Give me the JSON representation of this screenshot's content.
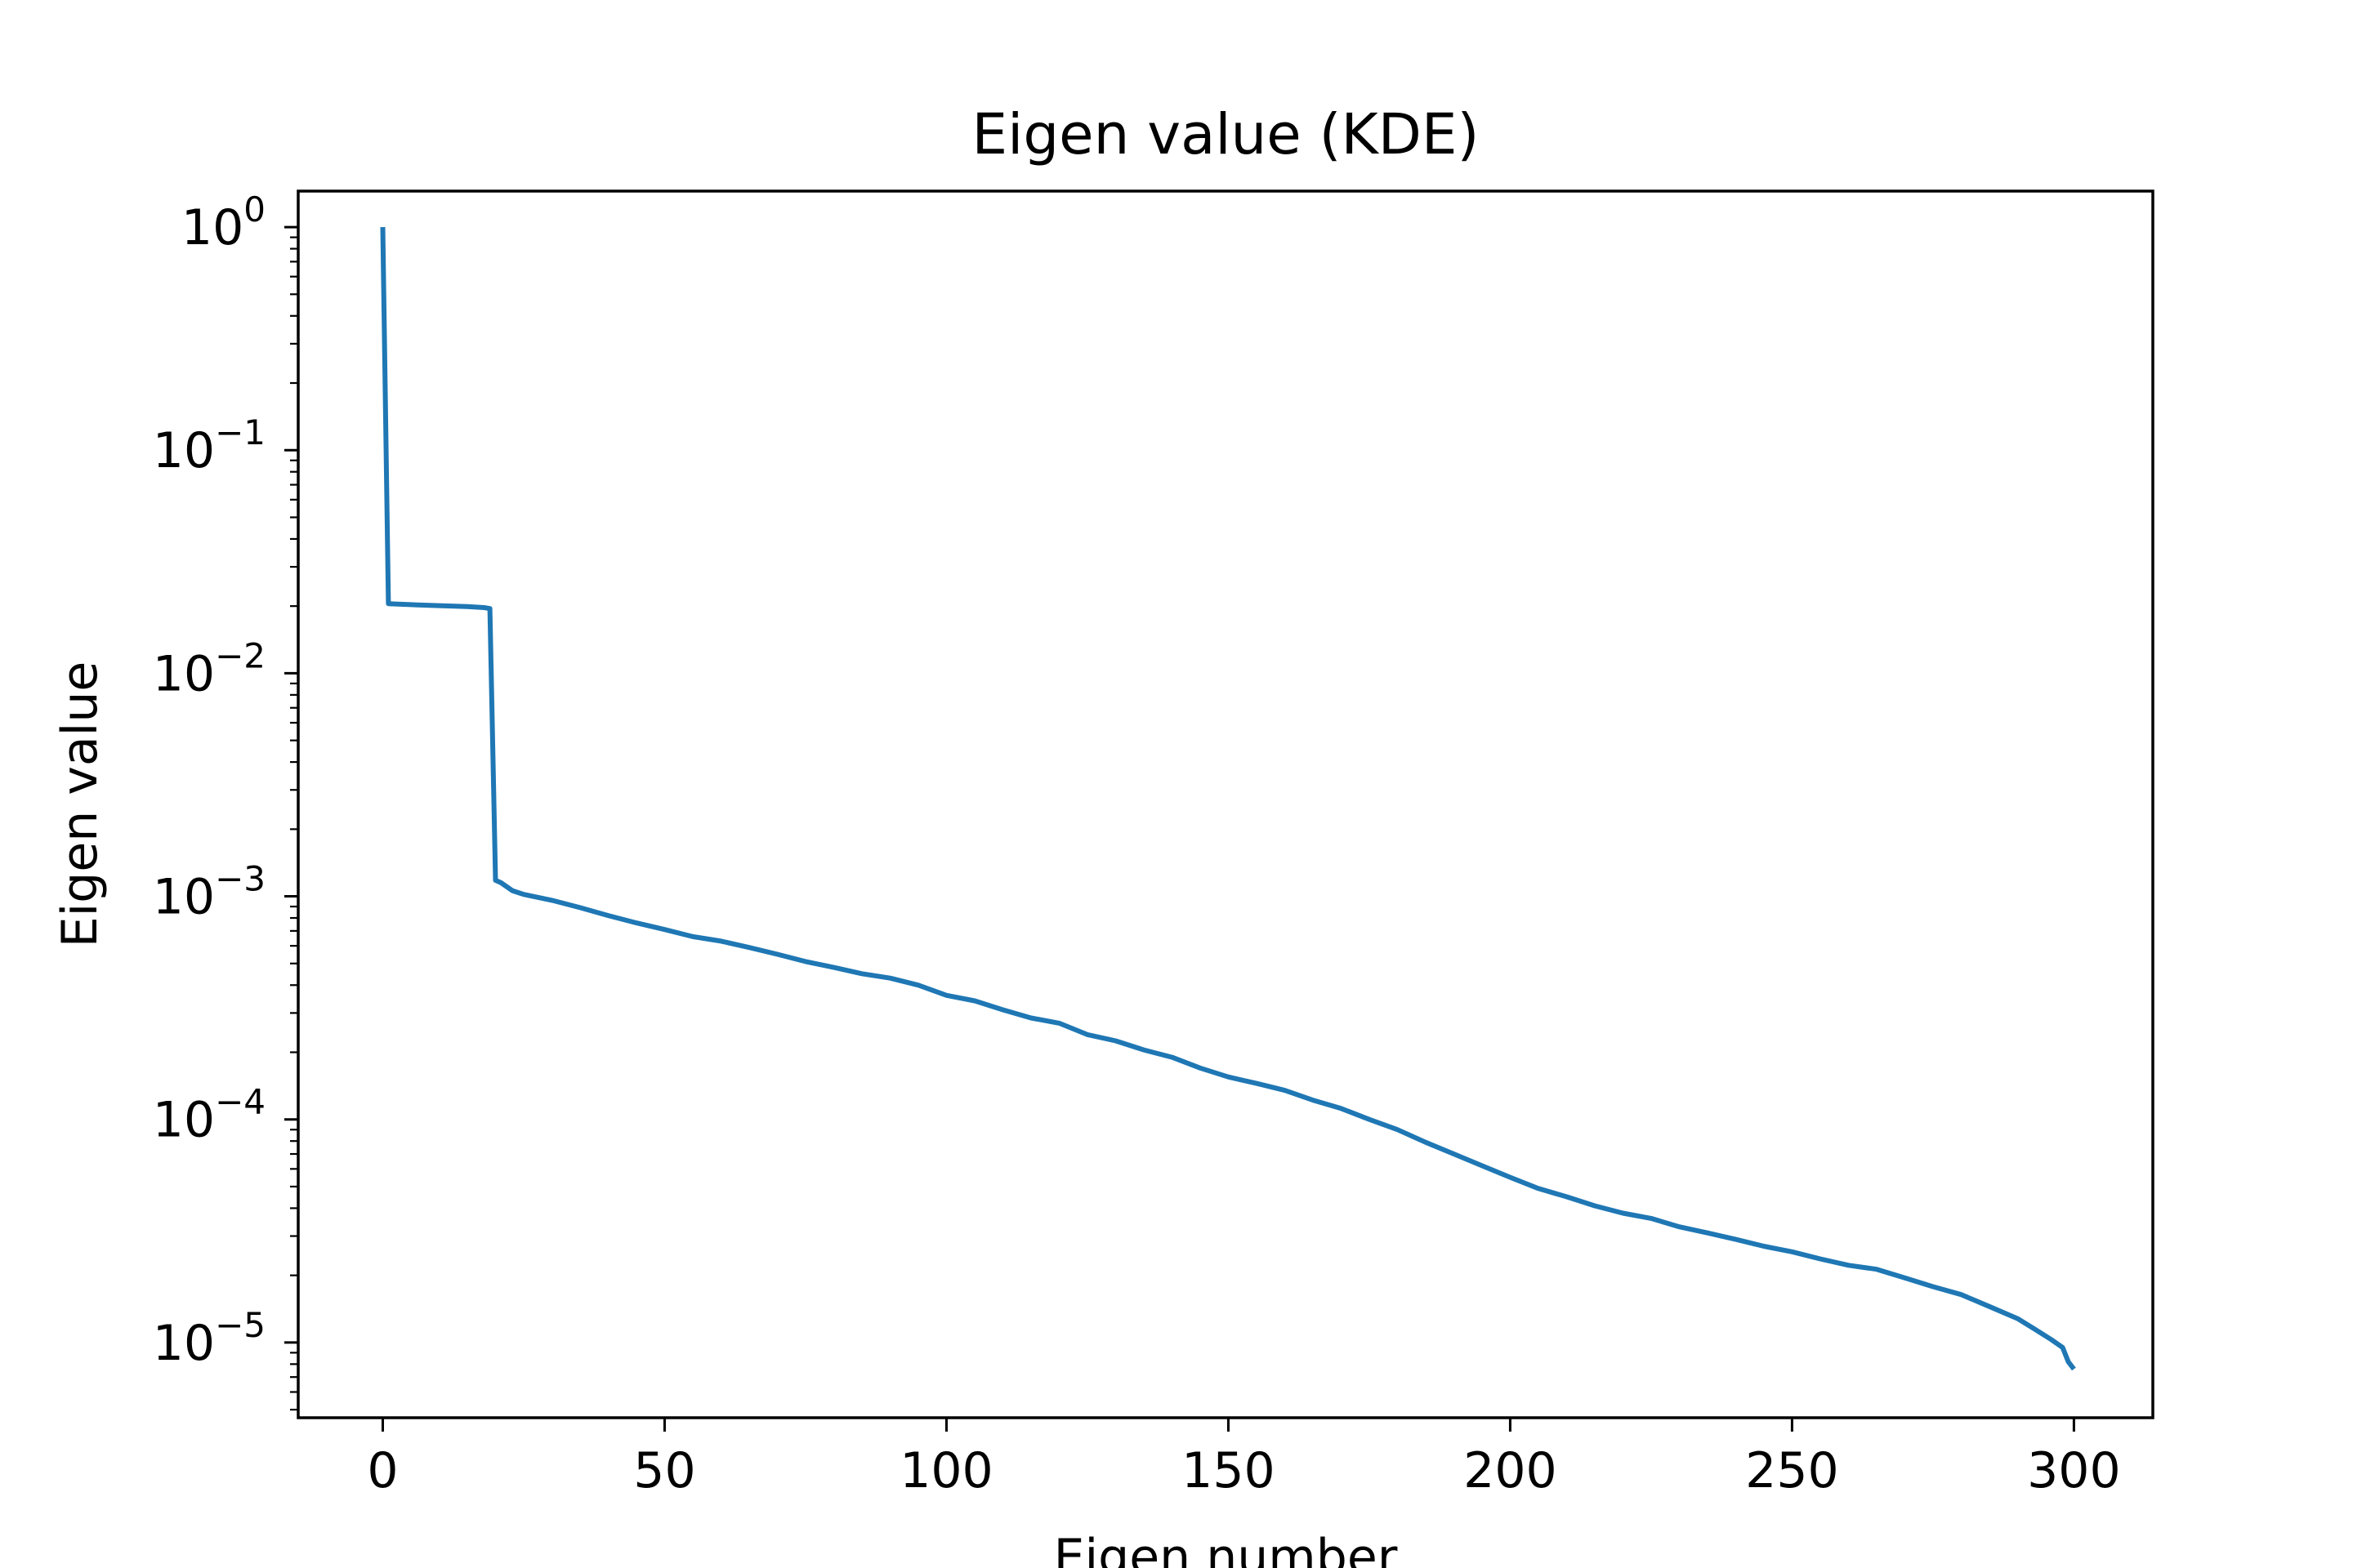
{
  "chart_data": {
    "type": "line",
    "title": "Eigen value (KDE)",
    "xlabel": "Eigen number",
    "ylabel": "Eigen value",
    "xlim": [
      -15,
      314
    ],
    "ylim": [
      4.6e-06,
      1.45
    ],
    "yscale": "log",
    "grid": false,
    "line_color": "#1f77b4",
    "x_ticks": [
      0,
      50,
      100,
      150,
      200,
      250,
      300
    ],
    "x_tick_labels": [
      "0",
      "50",
      "100",
      "150",
      "200",
      "250",
      "300"
    ],
    "y_ticks": [
      1,
      0.1,
      0.01,
      0.001,
      0.0001,
      1e-05
    ],
    "y_tick_labels": [
      {
        "base": "10",
        "exp": "0"
      },
      {
        "base": "10",
        "exp": "−1"
      },
      {
        "base": "10",
        "exp": "−2"
      },
      {
        "base": "10",
        "exp": "−3"
      },
      {
        "base": "10",
        "exp": "−4"
      },
      {
        "base": "10",
        "exp": "−5"
      }
    ],
    "series": [
      {
        "points": [
          [
            0,
            1.0
          ],
          [
            1,
            0.0205
          ],
          [
            5,
            0.0203
          ],
          [
            10,
            0.0201
          ],
          [
            15,
            0.0199
          ],
          [
            18,
            0.0197
          ],
          [
            19,
            0.0195
          ],
          [
            20,
            0.00118
          ],
          [
            21,
            0.00115
          ],
          [
            23,
            0.00106
          ],
          [
            25,
            0.00102
          ],
          [
            30,
            0.00096
          ],
          [
            35,
            0.00089
          ],
          [
            40,
            0.00082
          ],
          [
            45,
            0.00076
          ],
          [
            50,
            0.00071
          ],
          [
            55,
            0.00066
          ],
          [
            60,
            0.00063
          ],
          [
            65,
            0.00059
          ],
          [
            70,
            0.00055
          ],
          [
            75,
            0.00051
          ],
          [
            80,
            0.00048
          ],
          [
            85,
            0.00045
          ],
          [
            90,
            0.00043
          ],
          [
            95,
            0.0004
          ],
          [
            100,
            0.00036
          ],
          [
            105,
            0.00034
          ],
          [
            110,
            0.00031
          ],
          [
            115,
            0.000285
          ],
          [
            120,
            0.00027
          ],
          [
            125,
            0.00024
          ],
          [
            130,
            0.000225
          ],
          [
            135,
            0.000205
          ],
          [
            140,
            0.00019
          ],
          [
            145,
            0.00017
          ],
          [
            150,
            0.000155
          ],
          [
            155,
            0.000145
          ],
          [
            160,
            0.000135
          ],
          [
            165,
            0.000122
          ],
          [
            170,
            0.000112
          ],
          [
            175,
            0.0001
          ],
          [
            180,
            9e-05
          ],
          [
            185,
            7.9e-05
          ],
          [
            190,
            7e-05
          ],
          [
            195,
            6.2e-05
          ],
          [
            200,
            5.5e-05
          ],
          [
            205,
            4.9e-05
          ],
          [
            210,
            4.5e-05
          ],
          [
            215,
            4.1e-05
          ],
          [
            220,
            3.8e-05
          ],
          [
            225,
            3.6e-05
          ],
          [
            230,
            3.3e-05
          ],
          [
            235,
            3.1e-05
          ],
          [
            240,
            2.9e-05
          ],
          [
            245,
            2.7e-05
          ],
          [
            250,
            2.55e-05
          ],
          [
            255,
            2.37e-05
          ],
          [
            260,
            2.22e-05
          ],
          [
            265,
            2.13e-05
          ],
          [
            270,
            1.95e-05
          ],
          [
            275,
            1.78e-05
          ],
          [
            280,
            1.64e-05
          ],
          [
            285,
            1.45e-05
          ],
          [
            290,
            1.28e-05
          ],
          [
            293,
            1.15e-05
          ],
          [
            296,
            1.03e-05
          ],
          [
            298,
            9.5e-06
          ],
          [
            299,
            8.2e-06
          ],
          [
            300,
            7.6e-06
          ]
        ]
      }
    ]
  }
}
